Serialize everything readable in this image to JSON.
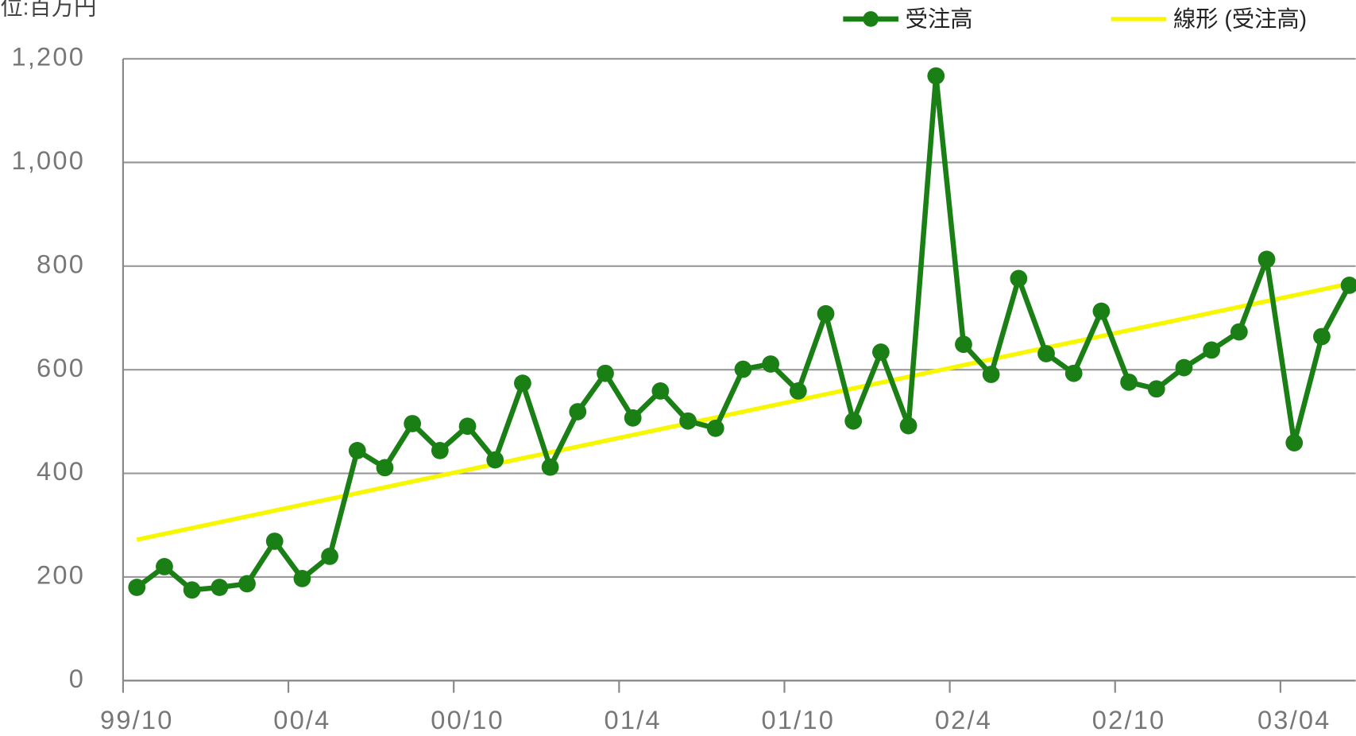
{
  "chart_data": {
    "type": "line",
    "unit_label": "単位:百万円",
    "categories": [
      "99/10",
      null,
      null,
      null,
      null,
      null,
      "00/4",
      null,
      null,
      null,
      null,
      null,
      "00/10",
      null,
      null,
      null,
      null,
      null,
      "01/4",
      null,
      null,
      null,
      null,
      null,
      "01/10",
      null,
      null,
      null,
      null,
      null,
      "02/4",
      null,
      null,
      null,
      null,
      null,
      "02/10",
      null,
      null,
      null,
      null,
      null,
      "03/04",
      null,
      null
    ],
    "series": [
      {
        "name": "受注高",
        "color": "#1a7f14",
        "marker": true,
        "values": [
          180,
          220,
          175,
          180,
          187,
          269,
          197,
          240,
          444,
          411,
          496,
          444,
          491,
          426,
          574,
          412,
          519,
          593,
          507,
          559,
          501,
          487,
          601,
          611,
          559,
          708,
          501,
          634,
          492,
          1167,
          649,
          591,
          776,
          631,
          593,
          713,
          576,
          563,
          604,
          638,
          673,
          813,
          459,
          664,
          763
        ]
      },
      {
        "name": "線形 (受注高)",
        "color": "#f7f700",
        "marker": false,
        "values": [
          272.0,
          283.2,
          294.5,
          305.7,
          316.9,
          328.1,
          339.4,
          350.6,
          361.8,
          373.0,
          384.3,
          395.5,
          406.7,
          418.0,
          429.2,
          440.4,
          451.6,
          462.9,
          474.1,
          485.3,
          496.5,
          507.8,
          519.0,
          530.2,
          541.4,
          552.7,
          563.9,
          575.1,
          586.4,
          597.6,
          608.8,
          620.0,
          631.3,
          642.5,
          653.7,
          664.9,
          676.2,
          687.4,
          698.6,
          709.9,
          721.1,
          732.3,
          743.5,
          754.8,
          766.0
        ]
      }
    ],
    "ylim": [
      0,
      1200
    ],
    "yticks": [
      0,
      200,
      400,
      600,
      800,
      {
        "value": 1000,
        "label": "1,000"
      },
      {
        "value": 1200,
        "label": "1,200"
      }
    ],
    "grid": true,
    "legend": "top"
  }
}
